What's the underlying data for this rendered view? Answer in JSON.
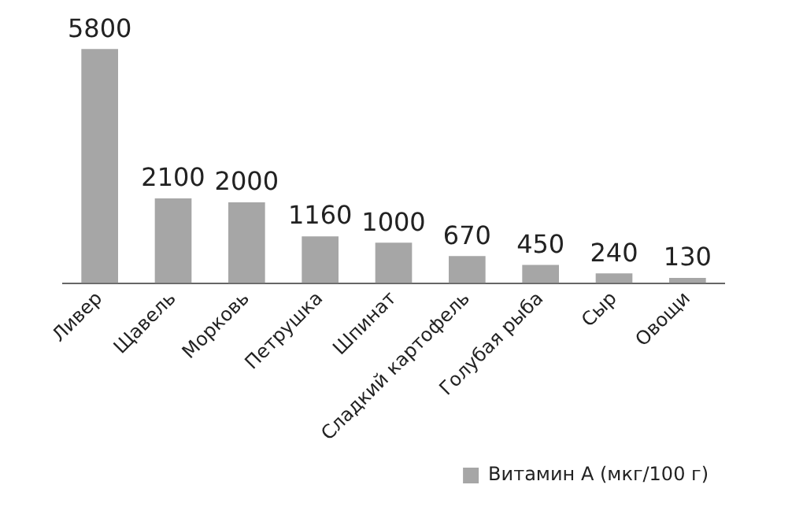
{
  "chart_data": {
    "type": "bar",
    "categories": [
      "Ливер",
      "Щавель",
      "Морковь",
      "Петрушка",
      "Шпинат",
      "Сладкий картофель",
      "Голубая рыба",
      "Сыр",
      "Овощи"
    ],
    "series": [
      {
        "name": "Витамин А (мкг/100 г)",
        "color": "#a6a6a6",
        "values": [
          5800,
          2100,
          2000,
          1160,
          1000,
          670,
          450,
          240,
          130
        ]
      }
    ],
    "data_labels": true,
    "legend": "bottom right",
    "grid": false,
    "tick_labels": "x"
  }
}
